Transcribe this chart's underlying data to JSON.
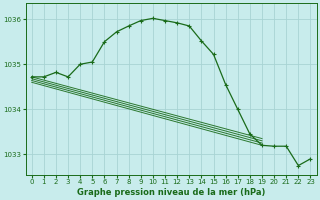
{
  "title": "Graphe pression niveau de la mer (hPa)",
  "background_color": "#c8ecec",
  "grid_color": "#a8d4d4",
  "line_color": "#1a6b1a",
  "xlim": [
    -0.5,
    23.5
  ],
  "ylim": [
    1032.55,
    1036.35
  ],
  "yticks": [
    1033,
    1034,
    1035,
    1036
  ],
  "xticks": [
    0,
    1,
    2,
    3,
    4,
    5,
    6,
    7,
    8,
    9,
    10,
    11,
    12,
    13,
    14,
    15,
    16,
    17,
    18,
    19,
    20,
    21,
    22,
    23
  ],
  "series_main_x": [
    0,
    1,
    2,
    3,
    4,
    5,
    6,
    7,
    8,
    9,
    10,
    11,
    12,
    13,
    14,
    15,
    16,
    17,
    18,
    19,
    20,
    21,
    22,
    23
  ],
  "series_main_y": [
    1034.72,
    1034.72,
    1034.82,
    1034.72,
    1035.0,
    1035.05,
    1035.5,
    1035.72,
    1035.85,
    1035.97,
    1036.02,
    1035.97,
    1035.92,
    1035.85,
    1035.52,
    1035.22,
    1034.55,
    1034.0,
    1033.45,
    1033.2,
    1033.18,
    1033.18,
    1032.75,
    1032.9
  ],
  "ref_lines": [
    {
      "x0": 0,
      "y0": 1034.72,
      "x1": 19,
      "y1": 1033.35
    },
    {
      "x0": 0,
      "y0": 1034.68,
      "x1": 19,
      "y1": 1033.3
    },
    {
      "x0": 0,
      "y0": 1034.64,
      "x1": 19,
      "y1": 1033.25
    },
    {
      "x0": 0,
      "y0": 1034.6,
      "x1": 19,
      "y1": 1033.2
    }
  ],
  "xlabel_fontsize": 6,
  "tick_fontsize": 5,
  "linewidth_main": 0.9,
  "linewidth_ref": 0.7,
  "marker": "+",
  "markersize": 3.0,
  "markeredgewidth": 0.8
}
